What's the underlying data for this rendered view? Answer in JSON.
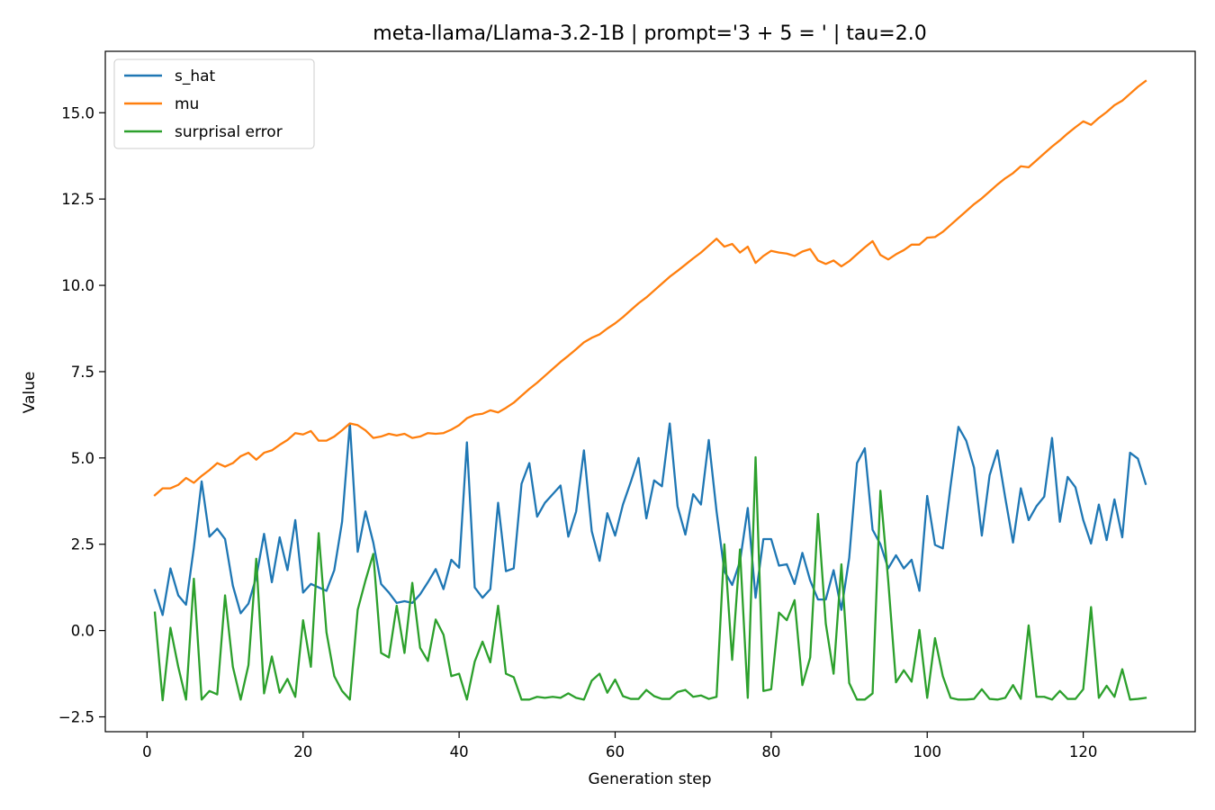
{
  "chart_data": {
    "type": "line",
    "title": "meta-llama/Llama-3.2-1B | prompt='3 + 5 = ' | tau=2.0",
    "xlabel": "Generation step",
    "ylabel": "Value",
    "xlim": [
      -5.35,
      134.35
    ],
    "ylim": [
      -2.93,
      16.78
    ],
    "xticks": [
      0,
      20,
      40,
      60,
      80,
      100,
      120
    ],
    "yticks": [
      -2.5,
      0.0,
      2.5,
      5.0,
      7.5,
      10.0,
      12.5,
      15.0
    ],
    "ytick_labels": [
      "−2.5",
      "0.0",
      "2.5",
      "5.0",
      "7.5",
      "10.0",
      "12.5",
      "15.0"
    ],
    "grid": false,
    "legend_position": "upper left",
    "x": [
      1,
      2,
      3,
      4,
      5,
      6,
      7,
      8,
      9,
      10,
      11,
      12,
      13,
      14,
      15,
      16,
      17,
      18,
      19,
      20,
      21,
      22,
      23,
      24,
      25,
      26,
      27,
      28,
      29,
      30,
      31,
      32,
      33,
      34,
      35,
      36,
      37,
      38,
      39,
      40,
      41,
      42,
      43,
      44,
      45,
      46,
      47,
      48,
      49,
      50,
      51,
      52,
      53,
      54,
      55,
      56,
      57,
      58,
      59,
      60,
      61,
      62,
      63,
      64,
      65,
      66,
      67,
      68,
      69,
      70,
      71,
      72,
      73,
      74,
      75,
      76,
      77,
      78,
      79,
      80,
      81,
      82,
      83,
      84,
      85,
      86,
      87,
      88,
      89,
      90,
      91,
      92,
      93,
      94,
      95,
      96,
      97,
      98,
      99,
      100,
      101,
      102,
      103,
      104,
      105,
      106,
      107,
      108,
      109,
      110,
      111,
      112,
      113,
      114,
      115,
      116,
      117,
      118,
      119,
      120,
      121,
      122,
      123,
      124,
      125,
      126,
      127,
      128
    ],
    "series": [
      {
        "name": "s_hat",
        "color": "#1f77b4",
        "values": [
          1.17,
          0.45,
          1.8,
          1.02,
          0.75,
          2.4,
          4.32,
          2.72,
          2.95,
          2.65,
          1.3,
          0.5,
          0.78,
          1.55,
          2.8,
          1.4,
          2.7,
          1.75,
          3.2,
          1.1,
          1.35,
          1.25,
          1.15,
          1.75,
          3.15,
          6.0,
          2.28,
          3.45,
          2.55,
          1.35,
          1.1,
          0.8,
          0.85,
          0.8,
          1.05,
          1.4,
          1.78,
          1.2,
          2.05,
          1.82,
          5.45,
          1.25,
          0.95,
          1.2,
          3.7,
          1.72,
          1.8,
          4.25,
          4.85,
          3.3,
          3.7,
          3.95,
          4.2,
          2.72,
          3.45,
          5.22,
          2.88,
          2.02,
          3.4,
          2.75,
          3.65,
          4.3,
          5.0,
          3.25,
          4.35,
          4.18,
          6.0,
          3.6,
          2.78,
          3.95,
          3.65,
          5.52,
          3.45,
          1.72,
          1.32,
          2.0,
          3.55,
          0.95,
          2.65,
          2.65,
          1.88,
          1.92,
          1.35,
          2.25,
          1.45,
          0.9,
          0.9,
          1.75,
          0.6,
          2.1,
          4.85,
          5.28,
          2.92,
          2.5,
          1.8,
          2.18,
          1.8,
          2.05,
          1.15,
          3.9,
          2.48,
          2.38,
          4.2,
          5.9,
          5.5,
          4.72,
          2.75,
          4.5,
          5.22,
          3.85,
          2.55,
          4.12,
          3.2,
          3.6,
          3.88,
          5.58,
          3.15,
          4.45,
          4.15,
          3.2,
          2.52,
          3.65,
          2.62,
          3.8,
          2.7,
          5.15,
          4.98,
          4.25
        ]
      },
      {
        "name": "mu",
        "color": "#ff7f0e",
        "values": [
          3.92,
          4.12,
          4.12,
          4.22,
          4.42,
          4.28,
          4.48,
          4.65,
          4.85,
          4.75,
          4.85,
          5.05,
          5.15,
          4.95,
          5.15,
          5.22,
          5.38,
          5.52,
          5.72,
          5.68,
          5.78,
          5.5,
          5.5,
          5.62,
          5.8,
          6.0,
          5.95,
          5.8,
          5.58,
          5.62,
          5.7,
          5.65,
          5.7,
          5.58,
          5.62,
          5.72,
          5.7,
          5.72,
          5.82,
          5.95,
          6.15,
          6.25,
          6.28,
          6.38,
          6.32,
          6.45,
          6.6,
          6.8,
          7.0,
          7.18,
          7.38,
          7.58,
          7.78,
          7.96,
          8.15,
          8.35,
          8.48,
          8.58,
          8.75,
          8.9,
          9.08,
          9.28,
          9.48,
          9.65,
          9.85,
          10.05,
          10.25,
          10.42,
          10.6,
          10.78,
          10.95,
          11.15,
          11.35,
          11.12,
          11.2,
          10.95,
          11.12,
          10.65,
          10.85,
          11.0,
          10.95,
          10.92,
          10.85,
          10.98,
          11.05,
          10.72,
          10.62,
          10.72,
          10.55,
          10.7,
          10.9,
          11.1,
          11.28,
          10.88,
          10.75,
          10.9,
          11.02,
          11.18,
          11.18,
          11.38,
          11.4,
          11.55,
          11.75,
          11.95,
          12.15,
          12.35,
          12.52,
          12.72,
          12.92,
          13.1,
          13.25,
          13.45,
          13.42,
          13.62,
          13.82,
          14.02,
          14.2,
          14.4,
          14.58,
          14.75,
          14.65,
          14.85,
          15.02,
          15.22,
          15.35,
          15.55,
          15.75,
          15.92
        ]
      },
      {
        "name": "surprisal error",
        "color": "#2ca02c",
        "values": [
          0.52,
          -2.02,
          0.08,
          -1.05,
          -2.0,
          1.5,
          -2.0,
          -1.75,
          -1.85,
          1.02,
          -1.05,
          -2.0,
          -1.0,
          2.08,
          -1.82,
          -0.75,
          -1.8,
          -1.4,
          -1.92,
          0.3,
          -1.05,
          2.82,
          -0.05,
          -1.32,
          -1.75,
          -2.0,
          0.6,
          1.45,
          2.22,
          -0.65,
          -0.78,
          0.72,
          -0.65,
          1.38,
          -0.5,
          -0.88,
          0.32,
          -0.12,
          -1.32,
          -1.25,
          -2.0,
          -0.9,
          -0.32,
          -0.92,
          0.72,
          -1.25,
          -1.35,
          -2.0,
          -2.0,
          -1.92,
          -1.95,
          -1.92,
          -1.95,
          -1.82,
          -1.95,
          -2.0,
          -1.45,
          -1.25,
          -1.8,
          -1.42,
          -1.9,
          -1.98,
          -1.98,
          -1.72,
          -1.9,
          -1.98,
          -1.98,
          -1.78,
          -1.72,
          -1.92,
          -1.88,
          -1.98,
          -1.92,
          2.5,
          -0.85,
          2.35,
          -1.95,
          5.02,
          -1.75,
          -1.7,
          0.52,
          0.3,
          0.88,
          -1.58,
          -0.78,
          3.38,
          0.2,
          -1.25,
          1.92,
          -1.52,
          -2.0,
          -2.0,
          -1.82,
          4.05,
          1.45,
          -1.5,
          -1.15,
          -1.48,
          0.02,
          -1.95,
          -0.22,
          -1.32,
          -1.95,
          -2.0,
          -2.0,
          -1.98,
          -1.7,
          -1.98,
          -2.0,
          -1.95,
          -1.58,
          -1.98,
          0.15,
          -1.92,
          -1.92,
          -2.0,
          -1.75,
          -1.98,
          -1.98,
          -1.7,
          0.68,
          -1.95,
          -1.6,
          -1.92,
          -1.12,
          -2.0,
          -1.98,
          -1.95
        ]
      }
    ]
  }
}
